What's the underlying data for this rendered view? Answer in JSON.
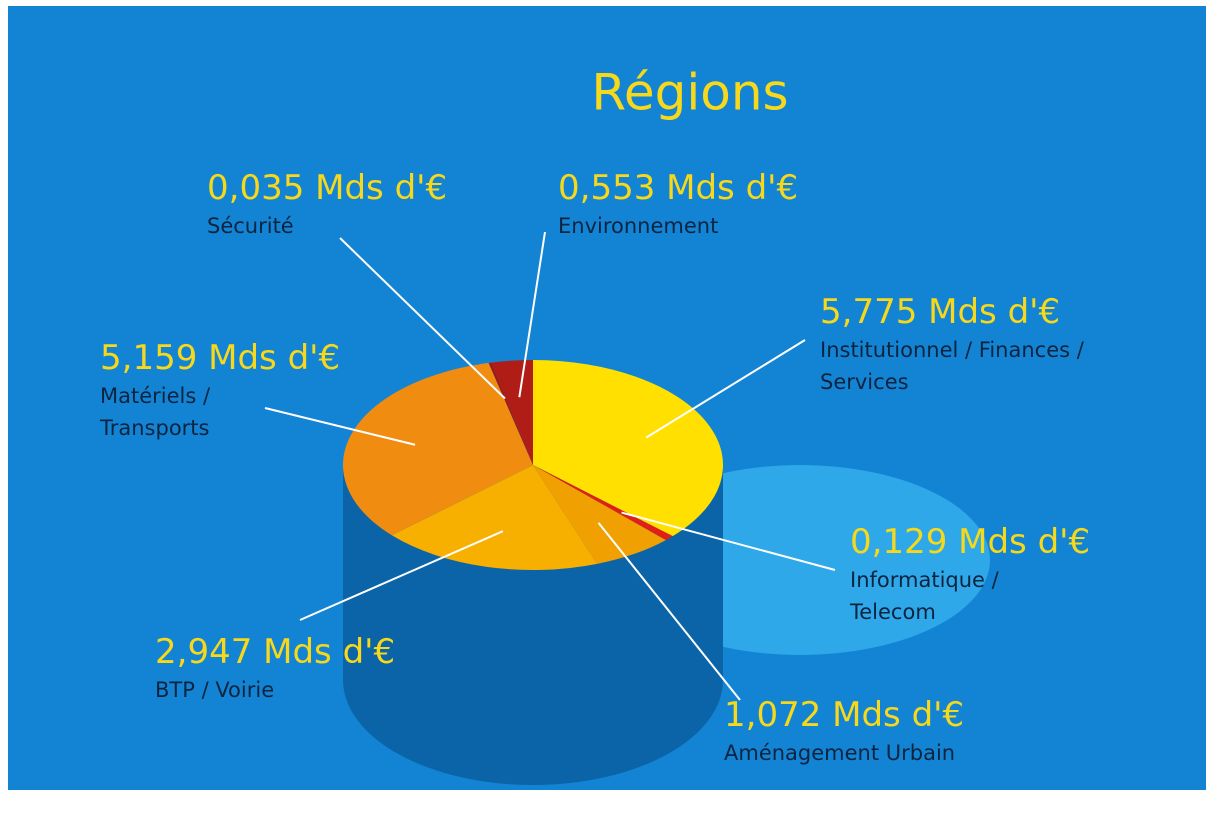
{
  "chart_data": {
    "type": "pie",
    "title": "Régions",
    "categories": [
      "Institutionnel / Finances / Services",
      "Informatique / Telecom",
      "Aménagement Urbain",
      "BTP / Voirie",
      "Matériels / Transports",
      "Sécurité",
      "Environnement"
    ],
    "values": [
      5.775,
      0.129,
      1.072,
      2.947,
      5.159,
      0.035,
      0.553
    ],
    "value_labels": [
      "5,775 Mds d'€",
      "0,129 Mds d'€",
      "1,072 Mds d'€",
      "2,947 Mds d'€",
      "5,159 Mds d'€",
      "0,035 Mds d'€",
      "0,553 Mds d'€"
    ],
    "colors": [
      "#ffe000",
      "#e02018",
      "#f0a000",
      "#f8b000",
      "#f08c10",
      "#9c1a14",
      "#b01c16"
    ]
  }
}
